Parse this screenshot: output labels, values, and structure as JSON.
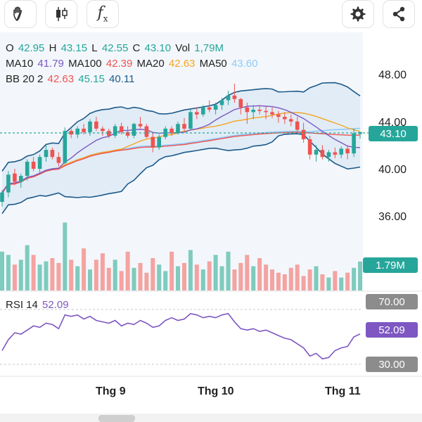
{
  "toolbar": {
    "draw_icon": "hand-draw-icon",
    "candle_icon": "candlestick-icon",
    "indicator_label": "f",
    "indicator_sub": "x",
    "settings_icon": "gear-icon",
    "share_icon": "share-icon"
  },
  "ohlc": {
    "o_label": "O",
    "o": "42.95",
    "h_label": "H",
    "h": "43.15",
    "l_label": "L",
    "l": "42.55",
    "c_label": "C",
    "c": "43.10",
    "vol_label": "Vol",
    "vol": "1,79M"
  },
  "ma": {
    "ma10_label": "MA10",
    "ma10": "41.79",
    "ma100_label": "MA100",
    "ma100": "42.39",
    "ma20_label": "MA20",
    "ma20": "42.63",
    "ma50_label": "MA50",
    "ma50": "43.60"
  },
  "bb": {
    "label": "BB 20 2",
    "mid": "42.63",
    "upper": "45.15",
    "lower": "40.11"
  },
  "rsi": {
    "label": "RSI 14",
    "value": "52.09",
    "upper": "70.00",
    "lower": "30.00"
  },
  "price_tag": "43.10",
  "volume_tag": "1.79M",
  "colors": {
    "up": "#26a69a",
    "down": "#ef5350",
    "ma10": "#7e57c2",
    "ma100": "#ef5350",
    "ma20": "#f5a623",
    "ma50": "#90caf9",
    "bb": "#1e5a8a",
    "rsi": "#7e57c2"
  },
  "chart_data": {
    "type": "candlestick",
    "price_axis": {
      "ticks": [
        "48.00",
        "44.00",
        "40.00",
        "36.00"
      ],
      "tick_values": [
        48,
        44,
        40,
        36
      ]
    },
    "x_tick_labels": [
      "Thg 9",
      "Thg 10",
      "Thg 11"
    ],
    "rsi_axis": {
      "ticks": [
        70,
        30
      ]
    },
    "candles": [
      [
        37.2,
        38.2,
        36.8,
        38.0
      ],
      [
        38.0,
        39.8,
        37.6,
        39.5
      ],
      [
        39.6,
        40.0,
        38.6,
        38.9
      ],
      [
        38.9,
        39.6,
        38.4,
        39.4
      ],
      [
        39.4,
        40.8,
        39.0,
        40.6
      ],
      [
        40.6,
        41.0,
        39.8,
        40.0
      ],
      [
        40.0,
        41.2,
        39.6,
        41.0
      ],
      [
        41.0,
        42.0,
        40.6,
        41.6
      ],
      [
        41.6,
        41.8,
        40.8,
        41.0
      ],
      [
        41.0,
        41.4,
        40.2,
        40.5
      ],
      [
        40.5,
        43.5,
        40.4,
        43.2
      ],
      [
        43.2,
        43.4,
        42.6,
        42.9
      ],
      [
        42.9,
        43.6,
        42.6,
        43.4
      ],
      [
        43.4,
        43.8,
        42.9,
        43.1
      ],
      [
        43.1,
        44.2,
        42.8,
        44.0
      ],
      [
        44.0,
        44.4,
        43.2,
        43.4
      ],
      [
        43.4,
        43.6,
        42.8,
        43.2
      ],
      [
        43.2,
        43.4,
        42.6,
        42.8
      ],
      [
        42.8,
        43.8,
        42.6,
        43.6
      ],
      [
        43.6,
        43.9,
        42.9,
        43.1
      ],
      [
        43.1,
        43.6,
        42.6,
        42.8
      ],
      [
        42.8,
        43.9,
        42.6,
        43.8
      ],
      [
        43.8,
        44.4,
        43.4,
        43.6
      ],
      [
        43.6,
        43.8,
        42.6,
        42.7
      ],
      [
        42.7,
        43.1,
        41.4,
        41.8
      ],
      [
        41.8,
        42.9,
        41.6,
        42.7
      ],
      [
        42.7,
        43.6,
        42.5,
        43.4
      ],
      [
        43.4,
        43.6,
        42.8,
        43.0
      ],
      [
        43.0,
        44.0,
        42.9,
        43.8
      ],
      [
        43.8,
        44.3,
        43.2,
        43.4
      ],
      [
        43.4,
        45.0,
        43.3,
        44.8
      ],
      [
        44.8,
        45.2,
        44.2,
        44.6
      ],
      [
        44.6,
        45.4,
        44.4,
        45.2
      ],
      [
        45.2,
        45.8,
        44.8,
        45.0
      ],
      [
        45.0,
        45.6,
        44.6,
        45.4
      ],
      [
        45.4,
        46.0,
        45.0,
        45.8
      ],
      [
        45.8,
        46.6,
        45.4,
        46.2
      ],
      [
        46.2,
        47.2,
        45.6,
        45.9
      ],
      [
        45.9,
        46.0,
        44.6,
        45.2
      ],
      [
        45.2,
        45.6,
        43.8,
        44.8
      ],
      [
        44.8,
        45.4,
        44.2,
        45.0
      ],
      [
        45.0,
        45.4,
        44.6,
        44.9
      ],
      [
        44.9,
        45.3,
        44.2,
        44.8
      ],
      [
        44.8,
        45.2,
        44.3,
        44.6
      ],
      [
        44.6,
        44.9,
        43.9,
        44.4
      ],
      [
        44.4,
        44.8,
        43.8,
        44.2
      ],
      [
        44.2,
        44.6,
        43.6,
        44.0
      ],
      [
        44.0,
        44.4,
        43.0,
        43.3
      ],
      [
        43.3,
        43.9,
        42.2,
        42.5
      ],
      [
        42.5,
        42.8,
        40.8,
        41.2
      ],
      [
        41.2,
        42.0,
        40.6,
        41.6
      ],
      [
        41.6,
        42.0,
        40.8,
        41.0
      ],
      [
        41.0,
        41.6,
        40.6,
        41.4
      ],
      [
        41.4,
        41.8,
        40.9,
        41.2
      ],
      [
        41.2,
        41.9,
        40.9,
        41.7
      ],
      [
        41.7,
        42.0,
        40.8,
        41.3
      ],
      [
        41.3,
        43.4,
        41.0,
        43.0
      ],
      [
        42.95,
        43.15,
        42.55,
        43.1
      ]
    ],
    "volume_millions": [
      2.4,
      2.2,
      1.6,
      1.9,
      2.8,
      2.2,
      1.6,
      1.8,
      2.0,
      1.7,
      4.2,
      1.9,
      1.5,
      2.6,
      1.3,
      1.9,
      2.3,
      1.4,
      1.9,
      1.2,
      2.4,
      1.4,
      1.7,
      1.1,
      2.0,
      1.6,
      1.2,
      2.4,
      1.5,
      1.7,
      2.5,
      1.6,
      1.3,
      1.8,
      2.2,
      1.5,
      2.4,
      1.3,
      1.7,
      2.2,
      1.5,
      2.0,
      1.6,
      1.3,
      1.1,
      1.0,
      1.4,
      1.6,
      0.9,
      1.3,
      1.5,
      1.0,
      0.8,
      1.2,
      0.8,
      1.1,
      1.4,
      1.79
    ],
    "rsi_values": [
      40,
      48,
      53,
      52,
      55,
      58,
      57,
      60,
      59,
      56,
      66,
      65,
      66,
      63,
      65,
      62,
      61,
      60,
      62,
      58,
      60,
      59,
      62,
      60,
      57,
      58,
      62,
      64,
      62,
      63,
      67,
      66,
      64,
      65,
      64,
      66,
      67,
      61,
      56,
      55,
      56,
      54,
      55,
      53,
      51,
      49,
      48,
      45,
      42,
      36,
      38,
      34,
      35,
      40,
      42,
      43,
      50,
      52.09
    ]
  }
}
